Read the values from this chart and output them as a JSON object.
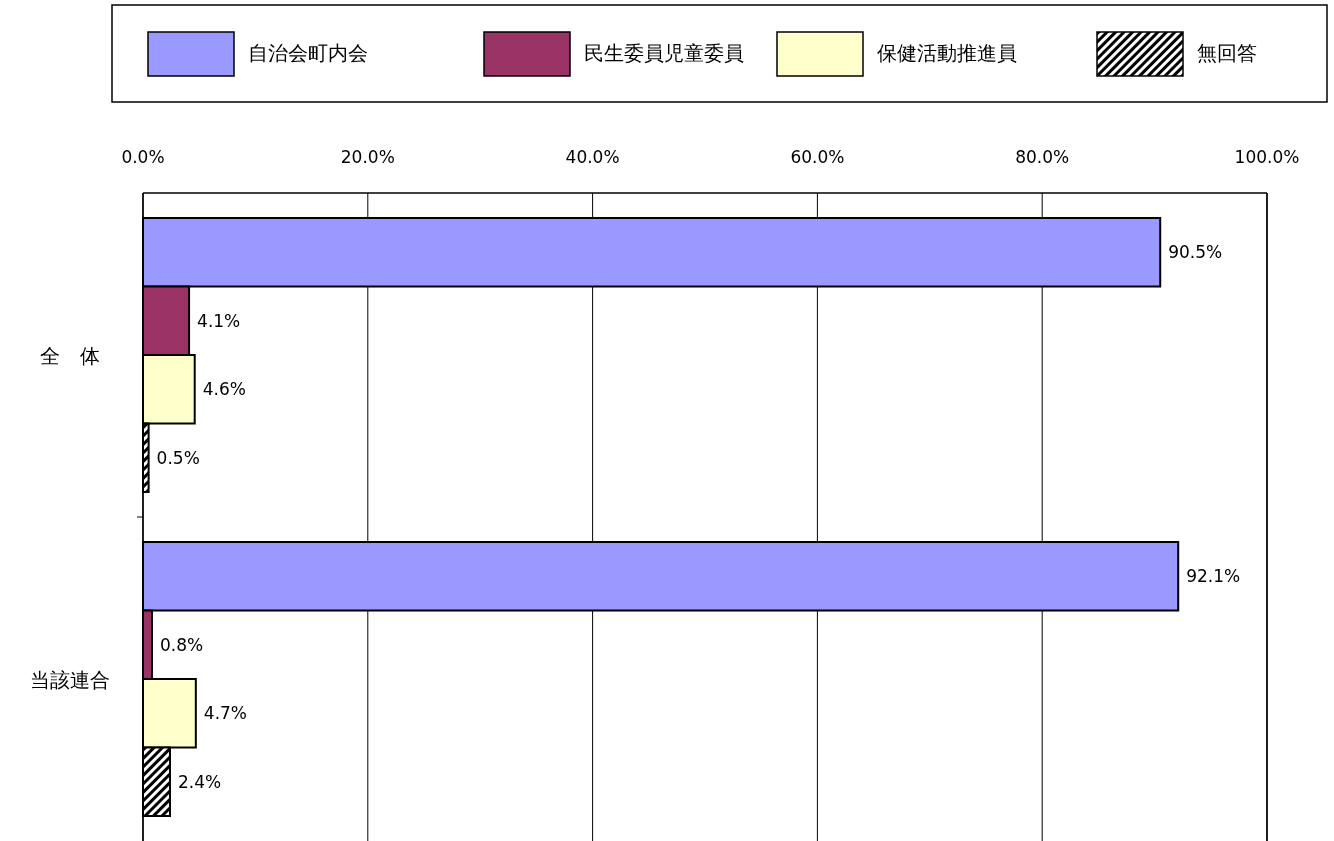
{
  "chart_data": {
    "type": "bar",
    "orientation": "horizontal",
    "categories": [
      "全　体",
      "当該連合"
    ],
    "series": [
      {
        "name": "自治会町内会",
        "color": "#9999ff",
        "values": [
          90.5,
          92.1
        ],
        "value_labels": [
          "90.5%",
          "92.1%"
        ]
      },
      {
        "name": "民生委員児童委員",
        "color": "#993366",
        "values": [
          4.1,
          0.8
        ],
        "value_labels": [
          "4.1%",
          "0.8%"
        ]
      },
      {
        "name": "保健活動推進員",
        "color": "#ffffcc",
        "values": [
          4.6,
          4.7
        ],
        "value_labels": [
          "4.6%",
          "4.7%"
        ]
      },
      {
        "name": "無回答",
        "color": "#000000",
        "values": [
          0.5,
          2.4
        ],
        "value_labels": [
          "0.5%",
          "2.4%"
        ]
      }
    ],
    "xlim": [
      0,
      100
    ],
    "xticks": [
      {
        "value": 0,
        "label": "0.0%"
      },
      {
        "value": 20,
        "label": "20.0%"
      },
      {
        "value": 40,
        "label": "40.0%"
      },
      {
        "value": 60,
        "label": "60.0%"
      },
      {
        "value": 80,
        "label": "80.0%"
      },
      {
        "value": 100,
        "label": "100.0%"
      }
    ],
    "grid": "x",
    "legend": "top"
  }
}
